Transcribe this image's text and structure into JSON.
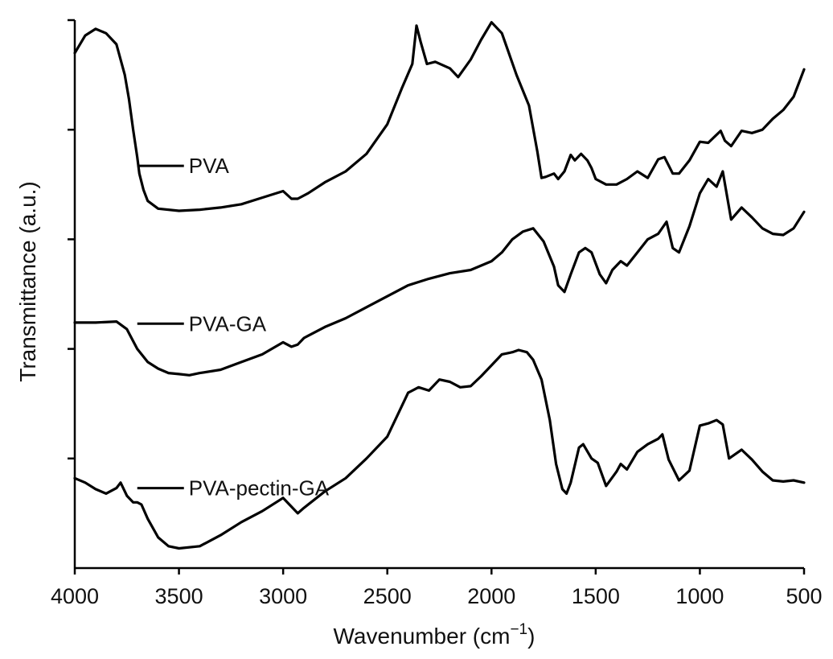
{
  "chart_data": {
    "type": "line",
    "title": "",
    "xlabel": "Wavenumber (cm",
    "xlabel_sup": "−1",
    "xlabel_close": ")",
    "ylabel": "Transmittance (a.u.)",
    "xlim": [
      4000,
      500
    ],
    "ylim": [
      0,
      5
    ],
    "x_reversed": true,
    "x_ticks": [
      "4000",
      "3500",
      "3000",
      "2500",
      "2000",
      "1500",
      "1000",
      "500"
    ],
    "x_tick_values": [
      4000,
      3500,
      3000,
      2500,
      2000,
      1500,
      1000,
      500
    ],
    "y_ticks": [
      1,
      2,
      3,
      4,
      5
    ],
    "grid": false,
    "legend": "inline labels",
    "series": [
      {
        "name": "PVA",
        "label_anchor": [
          3700,
          3.67
        ],
        "x": [
          4000,
          3950,
          3900,
          3850,
          3800,
          3760,
          3740,
          3720,
          3700,
          3690,
          3670,
          3650,
          3600,
          3500,
          3400,
          3300,
          3200,
          3100,
          3000,
          2960,
          2930,
          2880,
          2800,
          2700,
          2600,
          2500,
          2430,
          2380,
          2360,
          2340,
          2310,
          2270,
          2200,
          2160,
          2100,
          2050,
          2000,
          1950,
          1880,
          1820,
          1780,
          1760,
          1740,
          1700,
          1680,
          1650,
          1620,
          1600,
          1570,
          1540,
          1520,
          1500,
          1450,
          1400,
          1350,
          1300,
          1250,
          1200,
          1170,
          1130,
          1100,
          1050,
          1000,
          960,
          900,
          880,
          850,
          800,
          750,
          700,
          650,
          600,
          550,
          500
        ],
        "y": [
          4.7,
          4.86,
          4.92,
          4.88,
          4.78,
          4.5,
          4.28,
          4.0,
          3.75,
          3.6,
          3.45,
          3.35,
          3.28,
          3.26,
          3.27,
          3.29,
          3.32,
          3.38,
          3.44,
          3.37,
          3.37,
          3.42,
          3.52,
          3.62,
          3.78,
          4.05,
          4.38,
          4.6,
          4.95,
          4.8,
          4.6,
          4.62,
          4.56,
          4.48,
          4.64,
          4.82,
          4.98,
          4.88,
          4.5,
          4.22,
          3.8,
          3.56,
          3.57,
          3.6,
          3.55,
          3.62,
          3.77,
          3.72,
          3.78,
          3.72,
          3.65,
          3.55,
          3.5,
          3.5,
          3.55,
          3.62,
          3.56,
          3.73,
          3.75,
          3.6,
          3.6,
          3.72,
          3.89,
          3.88,
          3.99,
          3.9,
          3.85,
          3.99,
          3.97,
          4.0,
          4.1,
          4.18,
          4.3,
          4.55
        ]
      },
      {
        "name": "PVA-GA",
        "label_anchor": [
          3700,
          2.23
        ],
        "x": [
          4000,
          3900,
          3800,
          3750,
          3700,
          3650,
          3600,
          3550,
          3500,
          3450,
          3400,
          3300,
          3200,
          3100,
          3000,
          2960,
          2930,
          2900,
          2800,
          2700,
          2600,
          2500,
          2400,
          2300,
          2200,
          2100,
          2000,
          1950,
          1900,
          1850,
          1800,
          1750,
          1700,
          1680,
          1650,
          1620,
          1580,
          1550,
          1520,
          1480,
          1450,
          1420,
          1380,
          1350,
          1300,
          1250,
          1200,
          1160,
          1130,
          1100,
          1050,
          1000,
          960,
          920,
          890,
          850,
          800,
          750,
          700,
          650,
          600,
          550,
          500
        ],
        "y": [
          2.24,
          2.24,
          2.25,
          2.18,
          2.0,
          1.88,
          1.82,
          1.78,
          1.77,
          1.76,
          1.78,
          1.81,
          1.88,
          1.95,
          2.06,
          2.02,
          2.04,
          2.1,
          2.2,
          2.28,
          2.38,
          2.48,
          2.58,
          2.64,
          2.69,
          2.72,
          2.8,
          2.88,
          3.0,
          3.07,
          3.1,
          2.98,
          2.75,
          2.58,
          2.52,
          2.68,
          2.88,
          2.92,
          2.88,
          2.68,
          2.6,
          2.72,
          2.8,
          2.76,
          2.88,
          3.0,
          3.05,
          3.16,
          2.92,
          2.88,
          3.12,
          3.42,
          3.55,
          3.48,
          3.62,
          3.18,
          3.29,
          3.2,
          3.1,
          3.05,
          3.04,
          3.1,
          3.25
        ]
      },
      {
        "name": "PVA-pectin-GA",
        "label_anchor": [
          3700,
          0.73
        ],
        "x": [
          4000,
          3950,
          3900,
          3850,
          3800,
          3780,
          3750,
          3720,
          3700,
          3680,
          3650,
          3600,
          3550,
          3500,
          3400,
          3300,
          3200,
          3100,
          3000,
          2970,
          2930,
          2900,
          2800,
          2700,
          2600,
          2500,
          2400,
          2350,
          2300,
          2250,
          2200,
          2150,
          2100,
          2050,
          2000,
          1950,
          1900,
          1870,
          1830,
          1800,
          1760,
          1720,
          1690,
          1660,
          1640,
          1620,
          1580,
          1560,
          1520,
          1490,
          1450,
          1400,
          1380,
          1350,
          1300,
          1250,
          1200,
          1180,
          1150,
          1100,
          1050,
          1000,
          960,
          920,
          890,
          860,
          800,
          750,
          700,
          650,
          600,
          550,
          500
        ],
        "y": [
          0.82,
          0.78,
          0.72,
          0.68,
          0.73,
          0.78,
          0.66,
          0.6,
          0.6,
          0.58,
          0.45,
          0.28,
          0.2,
          0.18,
          0.2,
          0.3,
          0.42,
          0.52,
          0.64,
          0.58,
          0.5,
          0.55,
          0.7,
          0.82,
          1.0,
          1.2,
          1.6,
          1.65,
          1.62,
          1.72,
          1.7,
          1.65,
          1.66,
          1.75,
          1.85,
          1.95,
          1.97,
          1.99,
          1.97,
          1.9,
          1.72,
          1.35,
          0.95,
          0.72,
          0.68,
          0.78,
          1.1,
          1.13,
          1.0,
          0.96,
          0.75,
          0.88,
          0.95,
          0.9,
          1.06,
          1.13,
          1.18,
          1.22,
          0.99,
          0.8,
          0.89,
          1.3,
          1.32,
          1.35,
          1.31,
          1.0,
          1.08,
          0.99,
          0.88,
          0.8,
          0.79,
          0.8,
          0.78
        ]
      }
    ]
  }
}
